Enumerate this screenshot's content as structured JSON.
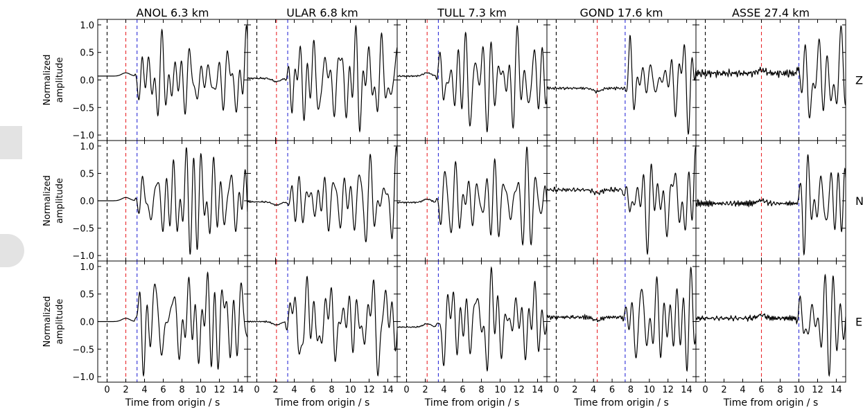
{
  "chart_data": {
    "type": "line",
    "description_of_layout": "grid",
    "stations": [
      {
        "name": "ANOL",
        "distance": "6.3 km",
        "title": "ANOL  6.3 km",
        "marker_origin_s": 0.0,
        "marker_p_s": 2.0,
        "marker_s_s": 3.2
      },
      {
        "name": "ULAR",
        "distance": "6.8 km",
        "title": "ULAR  6.8 km",
        "marker_origin_s": 0.0,
        "marker_p_s": 2.1,
        "marker_s_s": 3.3
      },
      {
        "name": "TULL",
        "distance": "7.3 km",
        "title": "TULL  7.3 km",
        "marker_origin_s": 0.0,
        "marker_p_s": 2.2,
        "marker_s_s": 3.4
      },
      {
        "name": "GOND",
        "distance": "17.6 km",
        "title": "GOND 17.6 km",
        "marker_origin_s": 0.0,
        "marker_p_s": 4.4,
        "marker_s_s": 7.4
      },
      {
        "name": "ASSE",
        "distance": "27.4 km",
        "title": "ASSE 27.4 km",
        "marker_origin_s": 0.0,
        "marker_p_s": 6.0,
        "marker_s_s": 10.0
      }
    ],
    "components": [
      "Z",
      "N",
      "E"
    ],
    "xlabel": "Time from origin / s",
    "ylabel_line1": "Normalized",
    "ylabel_line2": "amplitude",
    "xlim": [
      -1.0,
      15.0
    ],
    "ylim": [
      -1.1,
      1.1
    ],
    "xticks": [
      0,
      2,
      4,
      6,
      8,
      10,
      12,
      14
    ],
    "yticks": [
      -1.0,
      -0.5,
      0.0,
      0.5,
      1.0
    ],
    "ytick_labels": [
      "−1.0",
      "−0.5",
      "0.0",
      "0.5",
      "1.0"
    ],
    "marker_colors": {
      "origin": "#000000",
      "p": "#e8262a",
      "s": "#2b2bd6"
    },
    "trace_color": "#000000",
    "pre_event_level": [
      [
        0.07,
        0.03,
        0.07,
        -0.15,
        0.12
      ],
      [
        0.0,
        -0.02,
        -0.03,
        0.2,
        -0.05
      ],
      [
        0.0,
        0.0,
        -0.1,
        0.08,
        0.06
      ]
    ],
    "pre_event_noise": [
      [
        0.0,
        0.01,
        0.01,
        0.02,
        0.06
      ],
      [
        0.0,
        0.01,
        0.01,
        0.03,
        0.04
      ],
      [
        0.0,
        0.01,
        0.01,
        0.03,
        0.04
      ]
    ]
  }
}
